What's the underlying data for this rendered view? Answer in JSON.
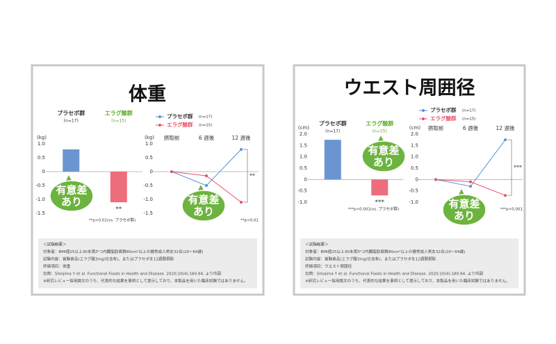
{
  "panels": [
    {
      "title": "体重",
      "notes": [
        "＜試験概要＞",
        "対象者：BMI値25以上30未満かつ内臓脂肪面積80cm²以上の健常成人男女32名(20〜64歳)",
        "試験内容：被験食品(エラグ酸3mg/日含有)、またはプラセボを12週間摂取",
        "評価項目：体重",
        "出典：Shiojima Y et al. Functional Foods in Health and Disease. 2020;10(4):180-94. より作図",
        "※研究レビュー採用論文のうち、代表的な結果を事例として提示しており、本製品を用いた臨床試験ではありません。"
      ],
      "badges": [
        [
          "有意差",
          "あり"
        ],
        [
          "有意差",
          "あり"
        ]
      ]
    },
    {
      "title": "ウエスト周囲径",
      "notes": [
        "＜試験概要＞",
        "対象者：BMI値25以上30未満かつ内臓脂肪面積80cm²以上の健常成人男女32名(20〜64歳)",
        "試験内容：被験食品(エラグ酸3mg/日含有)、またはプラセボを12週間摂取",
        "評価項目：ウエスト周囲径",
        "出典：Shiojima Y et al. Functional Foods in Health and Disease. 2020;10(4):180-94. より作図",
        "※研究レビュー採用論文のうち、代表的な結果を事例として提示しており、本製品を用いた臨床試験ではありません。"
      ],
      "badges": [
        [
          "有意差",
          "あり"
        ],
        [
          "有意差",
          "あり"
        ]
      ]
    }
  ],
  "chart_data": [
    {
      "type": "bar",
      "y_label": "(kg)",
      "categories": [
        "プラセボ群",
        "エラグ酸群"
      ],
      "category_notes": [
        "(n=17)",
        "(n=15)"
      ],
      "category_colors": [
        "#333333",
        "#5aab2a"
      ],
      "values": [
        0.8,
        -1.1
      ],
      "colors": [
        "#6b95d0",
        "#ee6d7c"
      ],
      "ylim": [
        -1.5,
        1
      ],
      "yticks": [
        {
          "value": 1,
          "label": "1.0"
        },
        0.5,
        0,
        -0.5,
        {
          "value": -1,
          "label": "-1.0"
        },
        -1.5
      ],
      "annotation": "**",
      "footnote": "**p<0.01(vs. プラセボ群)"
    },
    {
      "type": "line",
      "y_label": "(kg)",
      "categories": [
        "摂取前",
        "6 週後",
        "12 週後"
      ],
      "series": [
        {
          "name": "プラセボ群",
          "name_note": "(n=17)",
          "color": "#5b8fd6",
          "values": [
            0,
            -0.5,
            0.8
          ]
        },
        {
          "name": "エラグ酸群",
          "name_note": "(n=15)",
          "color": "#e8506a",
          "values": [
            0,
            -0.15,
            -1.1
          ]
        }
      ],
      "ylim": [
        -1.5,
        1
      ],
      "yticks": [
        {
          "value": 1,
          "label": "1.0"
        },
        0.5,
        0,
        -0.5,
        {
          "value": -1,
          "label": "-1.0"
        },
        -1.5
      ],
      "annotation": "**",
      "footnote": "**p<0.01"
    },
    {
      "type": "bar",
      "y_label": "(cm)",
      "categories": [
        "プラセボ群",
        "エラグ酸群"
      ],
      "category_notes": [
        "(n=17)",
        "(n=15)"
      ],
      "category_colors": [
        "#333333",
        "#5aab2a"
      ],
      "values": [
        1.75,
        -0.7
      ],
      "colors": [
        "#6b95d0",
        "#ee6d7c"
      ],
      "ylim": [
        -1,
        2
      ],
      "yticks": [
        {
          "value": 2,
          "label": "2.0"
        },
        1.5,
        {
          "value": 1,
          "label": "1.0"
        },
        0.5,
        0,
        -0.5,
        {
          "value": -1,
          "label": "-1.0"
        }
      ],
      "annotation": "***",
      "footnote": "***p<0.001(vs. プラセボ群)"
    },
    {
      "type": "line",
      "y_label": "(cm)",
      "categories": [
        "摂取前",
        "6 週後",
        "12 週後"
      ],
      "series": [
        {
          "name": "プラセボ群",
          "name_note": "(n=17)",
          "color": "#5b8fd6",
          "values": [
            0,
            -0.3,
            1.75
          ]
        },
        {
          "name": "エラグ酸群",
          "name_note": "(n=15)",
          "color": "#e8506a",
          "values": [
            0,
            -0.1,
            -0.7
          ]
        }
      ],
      "ylim": [
        -1,
        2
      ],
      "yticks": [
        {
          "value": 2,
          "label": "2.0"
        },
        1.5,
        {
          "value": 1,
          "label": "1.0"
        },
        0.5,
        0,
        -0.5,
        {
          "value": -1,
          "label": "-1.0"
        }
      ],
      "annotation": "***",
      "footnote": "***p<0.001"
    }
  ]
}
